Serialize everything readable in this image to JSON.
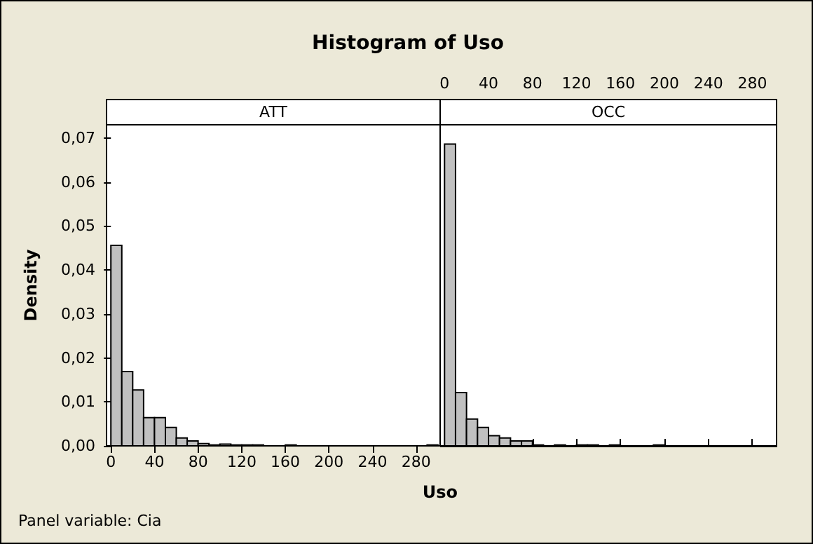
{
  "chart_data": [
    {
      "type": "histogram",
      "title": "Histogram of Uso",
      "subtitle": "ATT",
      "xlabel": "Uso",
      "ylabel": "Density",
      "annotations": [
        "Panel variable: Cia"
      ],
      "color": "#c0c0c0",
      "bins": [
        0,
        10,
        20,
        30,
        40,
        50,
        60,
        70,
        80,
        90,
        100,
        110,
        120,
        130,
        140,
        150,
        160,
        170,
        180,
        190,
        200,
        210,
        220,
        230,
        240,
        250,
        260,
        270,
        280,
        290,
        300
      ],
      "values": [
        0.0456,
        0.0169,
        0.0127,
        0.0064,
        0.0064,
        0.0042,
        0.0018,
        0.0011,
        0.0005,
        0.0002,
        0.0004,
        0.0002,
        0.0002,
        0.0002,
        0,
        0,
        0.0002,
        0,
        0,
        0,
        0,
        0,
        0,
        0,
        0,
        0,
        0,
        0,
        0,
        0.0002
      ],
      "xlim": [
        -4,
        302
      ],
      "xticks": [
        0,
        40,
        80,
        120,
        160,
        200,
        240,
        280
      ],
      "ylim": [
        0,
        0.073
      ],
      "yticks": [
        {
          "value": 0,
          "label": "0,00"
        },
        {
          "value": 0.01,
          "label": "0,01"
        },
        {
          "value": 0.02,
          "label": "0,02"
        },
        {
          "value": 0.03,
          "label": "0,03"
        },
        {
          "value": 0.04,
          "label": "0,04"
        },
        {
          "value": 0.05,
          "label": "0,05"
        },
        {
          "value": 0.06,
          "label": "0,06"
        },
        {
          "value": 0.07,
          "label": "0,07"
        }
      ]
    },
    {
      "type": "histogram",
      "subtitle": "OCC",
      "color": "#c0c0c0",
      "bins": [
        0,
        10,
        20,
        30,
        40,
        50,
        60,
        70,
        80,
        90,
        100,
        110,
        120,
        130,
        140,
        150,
        160,
        170,
        180,
        190,
        200,
        210,
        220,
        230,
        240,
        250,
        260,
        270,
        280,
        290,
        300
      ],
      "values": [
        0.0686,
        0.0121,
        0.0061,
        0.0042,
        0.0023,
        0.0018,
        0.0011,
        0.0011,
        0.0002,
        0,
        0.0002,
        0,
        0.0002,
        0.0002,
        0,
        0.0002,
        0,
        0,
        0,
        0.0002,
        0,
        0,
        0,
        0,
        0,
        0,
        0,
        0,
        0,
        0
      ],
      "xlim": [
        -4,
        302
      ],
      "xticks": [
        0,
        40,
        80,
        120,
        160,
        200,
        240,
        280
      ],
      "ylim": [
        0,
        0.073
      ],
      "tick_labels": "x"
    }
  ]
}
